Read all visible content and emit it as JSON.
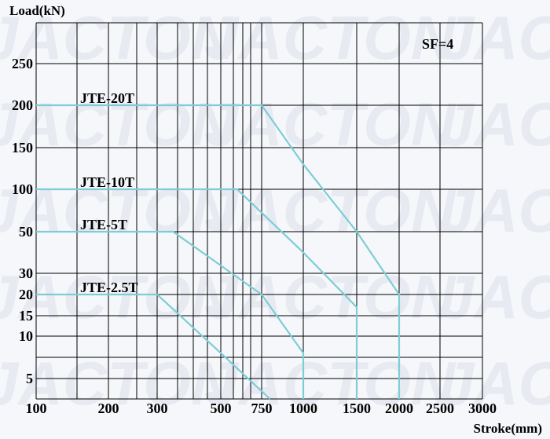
{
  "chart_data": {
    "type": "line",
    "title": "",
    "xlabel": "Stroke(mm)",
    "ylabel": "Load(kN)",
    "annotation": "SF=4",
    "x_tick_labels": [
      "100",
      "200",
      "300",
      "500",
      "750",
      "1000",
      "1500",
      "2000",
      "2500",
      "3000"
    ],
    "y_tick_labels": [
      "250",
      "200",
      "150",
      "100",
      "50",
      "30",
      "20",
      "15",
      "10",
      "5"
    ],
    "series": [
      {
        "name": "JTE-20T",
        "points": [
          [
            100,
            200
          ],
          [
            750,
            200
          ],
          [
            1000,
            130
          ],
          [
            1500,
            50
          ],
          [
            2000,
            20
          ],
          [
            2000,
            0
          ]
        ]
      },
      {
        "name": "JTE-10T",
        "points": [
          [
            100,
            100
          ],
          [
            600,
            100
          ],
          [
            1000,
            40
          ],
          [
            1500,
            17
          ],
          [
            1500,
            0
          ]
        ]
      },
      {
        "name": "JTE-5T",
        "points": [
          [
            100,
            50
          ],
          [
            350,
            50
          ],
          [
            750,
            20
          ],
          [
            1000,
            8
          ],
          [
            1000,
            0
          ]
        ]
      },
      {
        "name": "JTE-2.5T",
        "points": [
          [
            100,
            20
          ],
          [
            300,
            20
          ],
          [
            500,
            8
          ],
          [
            800,
            0
          ]
        ]
      }
    ],
    "grid": true,
    "watermark": "JACTON"
  }
}
